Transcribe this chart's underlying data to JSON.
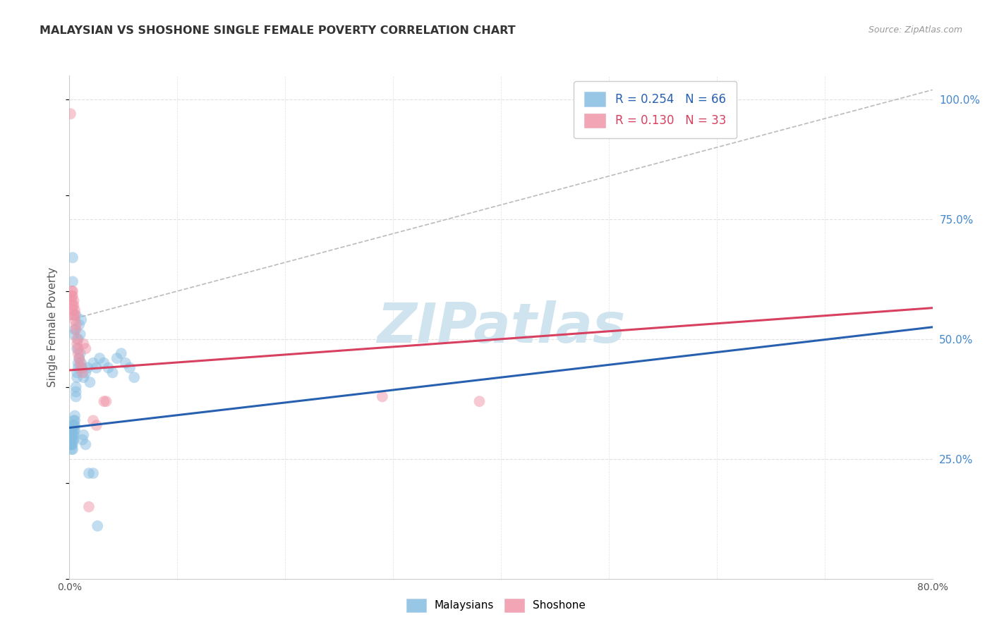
{
  "title": "MALAYSIAN VS SHOSHONE SINGLE FEMALE POVERTY CORRELATION CHART",
  "source_text": "Source: ZipAtlas.com",
  "ylabel": "Single Female Poverty",
  "xlim": [
    0.0,
    0.8
  ],
  "ylim": [
    0.0,
    1.05
  ],
  "ytick_labels_right": [
    "25.0%",
    "50.0%",
    "75.0%",
    "100.0%"
  ],
  "ytick_values_right": [
    0.25,
    0.5,
    0.75,
    1.0
  ],
  "watermark": "ZIPatlas",
  "malaysian_x": [
    0.001,
    0.001,
    0.001,
    0.002,
    0.002,
    0.002,
    0.002,
    0.002,
    0.002,
    0.003,
    0.003,
    0.003,
    0.003,
    0.003,
    0.003,
    0.004,
    0.004,
    0.004,
    0.004,
    0.004,
    0.005,
    0.005,
    0.005,
    0.005,
    0.006,
    0.006,
    0.006,
    0.007,
    0.007,
    0.008,
    0.008,
    0.009,
    0.01,
    0.011,
    0.012,
    0.013,
    0.015,
    0.017,
    0.019,
    0.022,
    0.025,
    0.028,
    0.032,
    0.036,
    0.04,
    0.044,
    0.048,
    0.052,
    0.056,
    0.06,
    0.003,
    0.003,
    0.004,
    0.005,
    0.006,
    0.007,
    0.008,
    0.009,
    0.01,
    0.011,
    0.012,
    0.013,
    0.015,
    0.018,
    0.022,
    0.026
  ],
  "malaysian_y": [
    0.3,
    0.29,
    0.28,
    0.31,
    0.3,
    0.29,
    0.28,
    0.27,
    0.28,
    0.32,
    0.31,
    0.3,
    0.29,
    0.28,
    0.27,
    0.33,
    0.32,
    0.31,
    0.3,
    0.29,
    0.34,
    0.33,
    0.32,
    0.31,
    0.4,
    0.39,
    0.38,
    0.43,
    0.42,
    0.45,
    0.44,
    0.46,
    0.47,
    0.45,
    0.44,
    0.42,
    0.43,
    0.44,
    0.41,
    0.45,
    0.44,
    0.46,
    0.45,
    0.44,
    0.43,
    0.46,
    0.47,
    0.45,
    0.44,
    0.42,
    0.62,
    0.67,
    0.51,
    0.52,
    0.55,
    0.48,
    0.5,
    0.53,
    0.51,
    0.54,
    0.29,
    0.3,
    0.28,
    0.22,
    0.22,
    0.11
  ],
  "shoshone_x": [
    0.001,
    0.002,
    0.002,
    0.002,
    0.003,
    0.003,
    0.003,
    0.003,
    0.004,
    0.004,
    0.004,
    0.005,
    0.005,
    0.005,
    0.006,
    0.006,
    0.007,
    0.007,
    0.008,
    0.008,
    0.009,
    0.01,
    0.011,
    0.012,
    0.013,
    0.015,
    0.018,
    0.022,
    0.025,
    0.032,
    0.034,
    0.38,
    0.29
  ],
  "shoshone_y": [
    0.97,
    0.6,
    0.59,
    0.58,
    0.6,
    0.59,
    0.57,
    0.56,
    0.58,
    0.57,
    0.55,
    0.56,
    0.55,
    0.54,
    0.53,
    0.52,
    0.5,
    0.49,
    0.48,
    0.47,
    0.46,
    0.45,
    0.44,
    0.43,
    0.49,
    0.48,
    0.15,
    0.33,
    0.32,
    0.37,
    0.37,
    0.37,
    0.38
  ],
  "blue_line_x": [
    0.0,
    0.8
  ],
  "blue_line_y": [
    0.315,
    0.525
  ],
  "pink_line_x": [
    0.0,
    0.8
  ],
  "pink_line_y": [
    0.435,
    0.565
  ],
  "diag_line_x": [
    0.0,
    0.8
  ],
  "diag_line_y": [
    0.54,
    1.02
  ],
  "blue_scatter_color": "#85bde0",
  "pink_scatter_color": "#f095a8",
  "blue_line_color": "#2860b0",
  "pink_line_color": "#d84060",
  "diagonal_color": "#bbbbbb",
  "grid_color": "#e0e0e0",
  "title_color": "#333333",
  "right_axis_color": "#4488cc",
  "watermark_color": "#d0e4f0",
  "marker_size": 130,
  "marker_alpha": 0.5
}
